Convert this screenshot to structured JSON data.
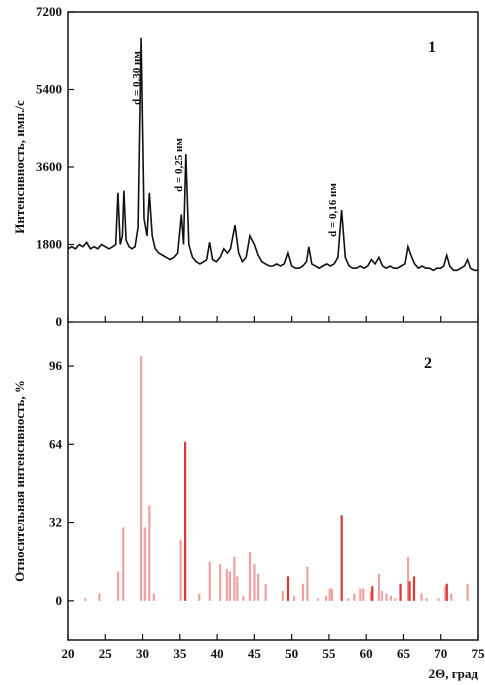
{
  "chart_data": [
    {
      "type": "line",
      "ylabel": "Интенсивность, имп./с",
      "label": "1",
      "xlim": [
        20,
        75
      ],
      "xticks": [
        20,
        25,
        30,
        35,
        40,
        45,
        50,
        55,
        60,
        65,
        70,
        75
      ],
      "ylim": [
        0,
        7200
      ],
      "yticks": [
        0,
        1800,
        3600,
        5400,
        7200
      ],
      "color": "#111111",
      "annotations": [
        "d = 0,30 нм",
        "d = 0,25 нм",
        "d = 0,16 нм"
      ],
      "x": [
        20,
        20.5,
        21,
        21.5,
        22,
        22.5,
        23,
        23.5,
        24,
        24.5,
        25,
        25.5,
        26,
        26.4,
        26.7,
        27,
        27.3,
        27.5,
        27.8,
        28.2,
        28.6,
        29,
        29.4,
        29.8,
        30.2,
        30.6,
        30.9,
        31.3,
        31.7,
        32.2,
        32.7,
        33.2,
        33.7,
        34.2,
        34.7,
        35.2,
        35.5,
        35.8,
        36.2,
        36.7,
        37.2,
        37.7,
        38.2,
        38.6,
        39,
        39.4,
        39.9,
        40.4,
        40.9,
        41.4,
        41.8,
        42.4,
        42.9,
        43.4,
        43.9,
        44.4,
        45,
        45.5,
        46,
        46.5,
        47,
        47.5,
        48,
        48.5,
        49,
        49.5,
        50,
        50.5,
        51,
        51.5,
        52,
        52.3,
        52.7,
        53.2,
        53.7,
        54.2,
        54.7,
        55.2,
        55.7,
        56.2,
        56.7,
        57.2,
        57.7,
        58.2,
        58.7,
        59.2,
        59.7,
        60.2,
        60.7,
        61.2,
        61.7,
        62.2,
        62.7,
        63.2,
        63.7,
        64.2,
        64.7,
        65.2,
        65.6,
        66,
        66.5,
        67,
        67.5,
        68,
        68.5,
        69,
        69.5,
        70,
        70.4,
        70.8,
        71.2,
        71.7,
        72.2,
        72.7,
        73.2,
        73.6,
        74,
        74.5,
        75
      ],
      "values": [
        1700,
        1750,
        1700,
        1800,
        1750,
        1850,
        1700,
        1750,
        1700,
        1800,
        1750,
        1700,
        1750,
        1800,
        3000,
        1800,
        2000,
        3050,
        1900,
        1750,
        1700,
        1750,
        2200,
        6600,
        2400,
        2000,
        3000,
        2000,
        1700,
        1600,
        1550,
        1500,
        1450,
        1500,
        1600,
        2500,
        1800,
        3900,
        1800,
        1500,
        1400,
        1350,
        1400,
        1450,
        1850,
        1450,
        1400,
        1500,
        1700,
        1600,
        1700,
        2250,
        1600,
        1400,
        1500,
        2000,
        1800,
        1550,
        1400,
        1350,
        1300,
        1300,
        1350,
        1300,
        1350,
        1600,
        1300,
        1250,
        1250,
        1300,
        1400,
        1750,
        1350,
        1300,
        1250,
        1300,
        1350,
        1300,
        1350,
        1500,
        2600,
        1500,
        1300,
        1250,
        1250,
        1300,
        1250,
        1300,
        1450,
        1350,
        1500,
        1300,
        1250,
        1300,
        1250,
        1250,
        1300,
        1350,
        1750,
        1550,
        1350,
        1250,
        1300,
        1250,
        1250,
        1200,
        1250,
        1250,
        1300,
        1550,
        1300,
        1200,
        1200,
        1250,
        1300,
        1450,
        1250,
        1200,
        1200
      ]
    },
    {
      "type": "bar",
      "ylabel": "Относительная интенсивность, %",
      "xlabel": "2Θ, град",
      "label": "2",
      "xlim": [
        20,
        75
      ],
      "xticks": [
        20,
        25,
        30,
        35,
        40,
        45,
        50,
        55,
        60,
        65,
        70,
        75
      ],
      "ylim": [
        -16,
        114
      ],
      "yticks": [
        0,
        32,
        64,
        96
      ],
      "series": [
        {
          "color": "#f0a0a0",
          "x": [
            22.3,
            24.2,
            26.7,
            27.4,
            29.8,
            30.3,
            30.9,
            31.5,
            35.1,
            37.6,
            39,
            40.4,
            41.3,
            41.7,
            42.3,
            42.7,
            43.5,
            44.4,
            45,
            45.5,
            46.5,
            48.8,
            50.3,
            51.5,
            52.1,
            53.5,
            54.6,
            55.1,
            55.4,
            57.6,
            58.4,
            59.2,
            59.6,
            60.6,
            61.7,
            62.1,
            62.7,
            63.3,
            63.9,
            65.6,
            67.4,
            68.1,
            69.7,
            70.6,
            71.4,
            73.6
          ],
          "values": [
            1,
            3,
            12,
            30,
            100,
            30,
            39,
            3,
            25,
            3,
            16,
            15,
            13,
            12,
            18,
            10,
            2,
            20,
            15,
            11,
            7,
            4,
            2,
            7,
            14,
            1,
            2,
            5,
            5,
            1,
            3,
            5,
            5,
            4,
            11,
            4,
            3,
            2,
            1,
            18,
            3,
            1,
            1,
            6,
            3,
            7
          ]
        },
        {
          "color": "#e03535",
          "x": [
            35.7,
            49.5,
            56.7,
            60.8,
            64.6,
            65.8,
            66.4,
            70.8
          ],
          "values": [
            65,
            10,
            35,
            6,
            7,
            8,
            10,
            7
          ]
        }
      ]
    }
  ]
}
